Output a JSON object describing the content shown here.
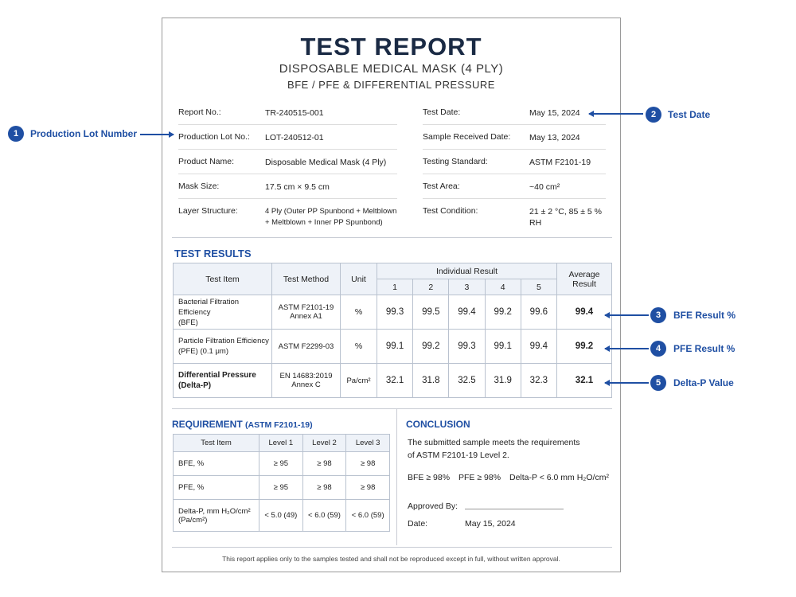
{
  "header": {
    "title": "TEST REPORT",
    "subtitle": "DISPOSABLE MEDICAL MASK (4 PLY)",
    "subtitle2": "BFE / PFE & DIFFERENTIAL PRESSURE"
  },
  "info_left": [
    {
      "label": "Report No.:",
      "value": "TR-240515-001"
    },
    {
      "label": "Production Lot No.:",
      "value": "LOT-240512-01"
    },
    {
      "label": "Product Name:",
      "value": "Disposable Medical Mask (4 Ply)"
    },
    {
      "label": "Mask Size:",
      "value": "17.5 cm × 9.5 cm"
    },
    {
      "label": "Layer Structure:",
      "value": "4 Ply (Outer PP Spunbond + Meltblown",
      "value2": "+ Meltblown + Inner PP Spunbond)"
    }
  ],
  "info_right": [
    {
      "label": "Test Date:",
      "value": "May 15, 2024"
    },
    {
      "label": "Sample Received Date:",
      "value": "May 13, 2024"
    },
    {
      "label": "Testing Standard:",
      "value": "ASTM F2101-19"
    },
    {
      "label": "Test Area:",
      "value": "~40 cm²"
    },
    {
      "label": "Test Condition:",
      "value": "21 ± 2 °C, 85 ± 5 % RH"
    }
  ],
  "results": {
    "section_title": "TEST RESULTS",
    "headers": {
      "item": "Test Item",
      "method": "Test Method",
      "unit": "Unit",
      "individual": "Individual Result",
      "avg1": "Average",
      "avg2": "Result",
      "cols": [
        "1",
        "2",
        "3",
        "4",
        "5"
      ]
    },
    "rows": [
      {
        "item1": "Bacterial Filtration Efficiency",
        "item2": "(BFE)",
        "method1": "ASTM F2101-19",
        "method2": "Annex A1",
        "unit": "%",
        "values": [
          "99.3",
          "99.5",
          "99.4",
          "99.2",
          "99.6"
        ],
        "avg": "99.4"
      },
      {
        "item1": "Particle Filtration Efficiency",
        "item2": "(PFE) (0.1 μm)",
        "method1": "ASTM F2299-03",
        "method2": "",
        "unit": "%",
        "values": [
          "99.1",
          "99.2",
          "99.3",
          "99.1",
          "99.4"
        ],
        "avg": "99.2"
      },
      {
        "item1": "Differential Pressure",
        "item2": "(Delta-P)",
        "method1": "EN 14683:2019",
        "method2": "Annex C",
        "unit": "Pa/cm²",
        "values": [
          "32.1",
          "31.8",
          "32.5",
          "31.9",
          "32.3"
        ],
        "avg": "32.1"
      }
    ]
  },
  "requirement": {
    "title": "REQUIREMENT",
    "title_std": "(ASTM F2101-19)",
    "headers": [
      "Test Item",
      "Level 1",
      "Level 2",
      "Level 3"
    ],
    "rows": [
      {
        "item": "BFE, %",
        "item2": "",
        "l1": "≥ 95",
        "l2": "≥ 98",
        "l3": "≥ 98"
      },
      {
        "item": "PFE, %",
        "item2": "",
        "l1": "≥ 95",
        "l2": "≥ 98",
        "l3": "≥ 98"
      },
      {
        "item": "Delta-P, mm H₂O/cm²",
        "item2": "(Pa/cm²)",
        "l1": "< 5.0 (49)",
        "l2": "< 6.0 (59)",
        "l3": "< 6.0 (59)"
      }
    ]
  },
  "conclusion": {
    "title": "CONCLUSION",
    "line1": "The submitted sample meets the requirements",
    "line2": "of ASTM F2101-19 Level 2.",
    "bfe": "BFE ≥ 98%",
    "pfe": "PFE ≥ 98%",
    "dp": "Delta-P < 6.0 mm H₂O/cm²",
    "approved_label": "Approved By:",
    "date_label": "Date:",
    "date_value": "May 15, 2024"
  },
  "footer": "This report applies only to the samples tested and shall not be reproduced except in full, without written approval.",
  "annotations": [
    {
      "num": "1",
      "label": "Production Lot Number"
    },
    {
      "num": "2",
      "label": "Test Date"
    },
    {
      "num": "3",
      "label": "BFE Result %"
    },
    {
      "num": "4",
      "label": "PFE Result %"
    },
    {
      "num": "5",
      "label": "Delta-P Value"
    }
  ],
  "colors": {
    "accent": "#1f4fa3",
    "title": "#1a2a44"
  }
}
